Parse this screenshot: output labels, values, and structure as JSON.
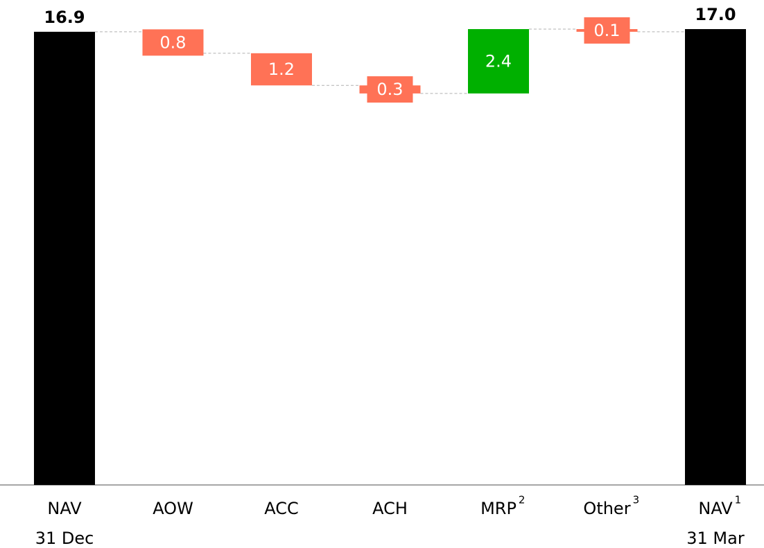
{
  "chart_data": {
    "type": "waterfall",
    "categories": [
      "NAV",
      "AOW",
      "ACC",
      "ACH",
      "MRP",
      "Other",
      "NAV"
    ],
    "category_sublabels": [
      "31 Dec",
      null,
      null,
      null,
      null,
      null,
      "31 Mar"
    ],
    "footnote_marks": [
      null,
      null,
      null,
      null,
      "2",
      "3",
      "1"
    ],
    "values": [
      16.9,
      -0.8,
      -1.2,
      -0.3,
      2.4,
      -0.1,
      17.0
    ],
    "value_labels": [
      "16.9",
      "0.8",
      "1.2",
      "0.3",
      "2.4",
      "0.1",
      "17.0"
    ],
    "is_total": [
      true,
      false,
      false,
      false,
      false,
      false,
      true
    ],
    "colors": {
      "total": "#000000",
      "increase": "#00b000",
      "decrease": "#ff7256"
    },
    "ylim": [
      0,
      17
    ]
  }
}
